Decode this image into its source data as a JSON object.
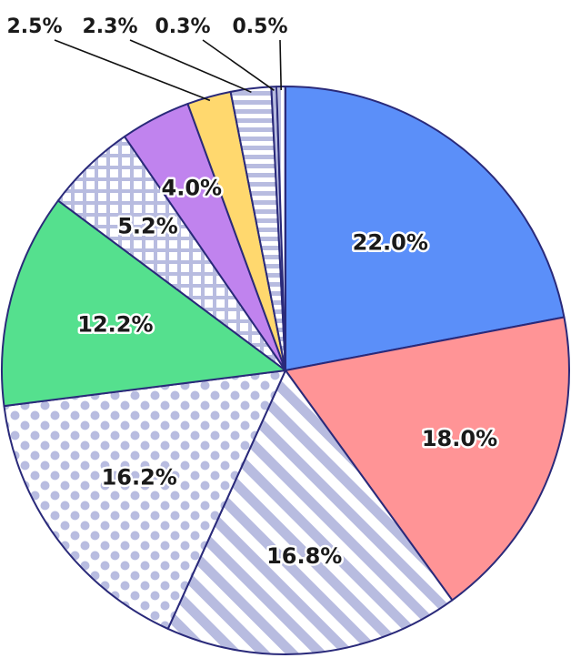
{
  "chart_data": {
    "type": "pie",
    "title": "",
    "start_angle_deg": 0,
    "direction": "clockwise",
    "slices": [
      {
        "value": 22.0,
        "label": "22.0%",
        "color": "#5b8ff9",
        "pattern": "solid"
      },
      {
        "value": 18.0,
        "label": "18.0%",
        "color": "#ff9496",
        "pattern": "solid"
      },
      {
        "value": 16.8,
        "label": "16.8%",
        "color": "#b8bce0",
        "pattern": "diagonal-stripes"
      },
      {
        "value": 16.2,
        "label": "16.2%",
        "color": "#b8bce0",
        "pattern": "dots"
      },
      {
        "value": 12.2,
        "label": "12.2%",
        "color": "#55e08e",
        "pattern": "solid"
      },
      {
        "value": 5.2,
        "label": "5.2%",
        "color": "#b8bce0",
        "pattern": "grid"
      },
      {
        "value": 4.0,
        "label": "4.0%",
        "color": "#c083ee",
        "pattern": "solid"
      },
      {
        "value": 2.5,
        "label": "2.5%",
        "color": "#ffd86e",
        "pattern": "solid"
      },
      {
        "value": 2.3,
        "label": "2.3%",
        "color": "#b8bce0",
        "pattern": "horizontal-stripes"
      },
      {
        "value": 0.3,
        "label": "0.3%",
        "color": "#b8bce0",
        "pattern": "solid"
      },
      {
        "value": 0.5,
        "label": "0.5%",
        "color": "#b8bce0",
        "pattern": "vertical-stripes"
      }
    ],
    "outside_labels": [
      "2.5%",
      "2.3%",
      "0.3%",
      "0.5%"
    ],
    "border_color": "#2a2a7a"
  }
}
